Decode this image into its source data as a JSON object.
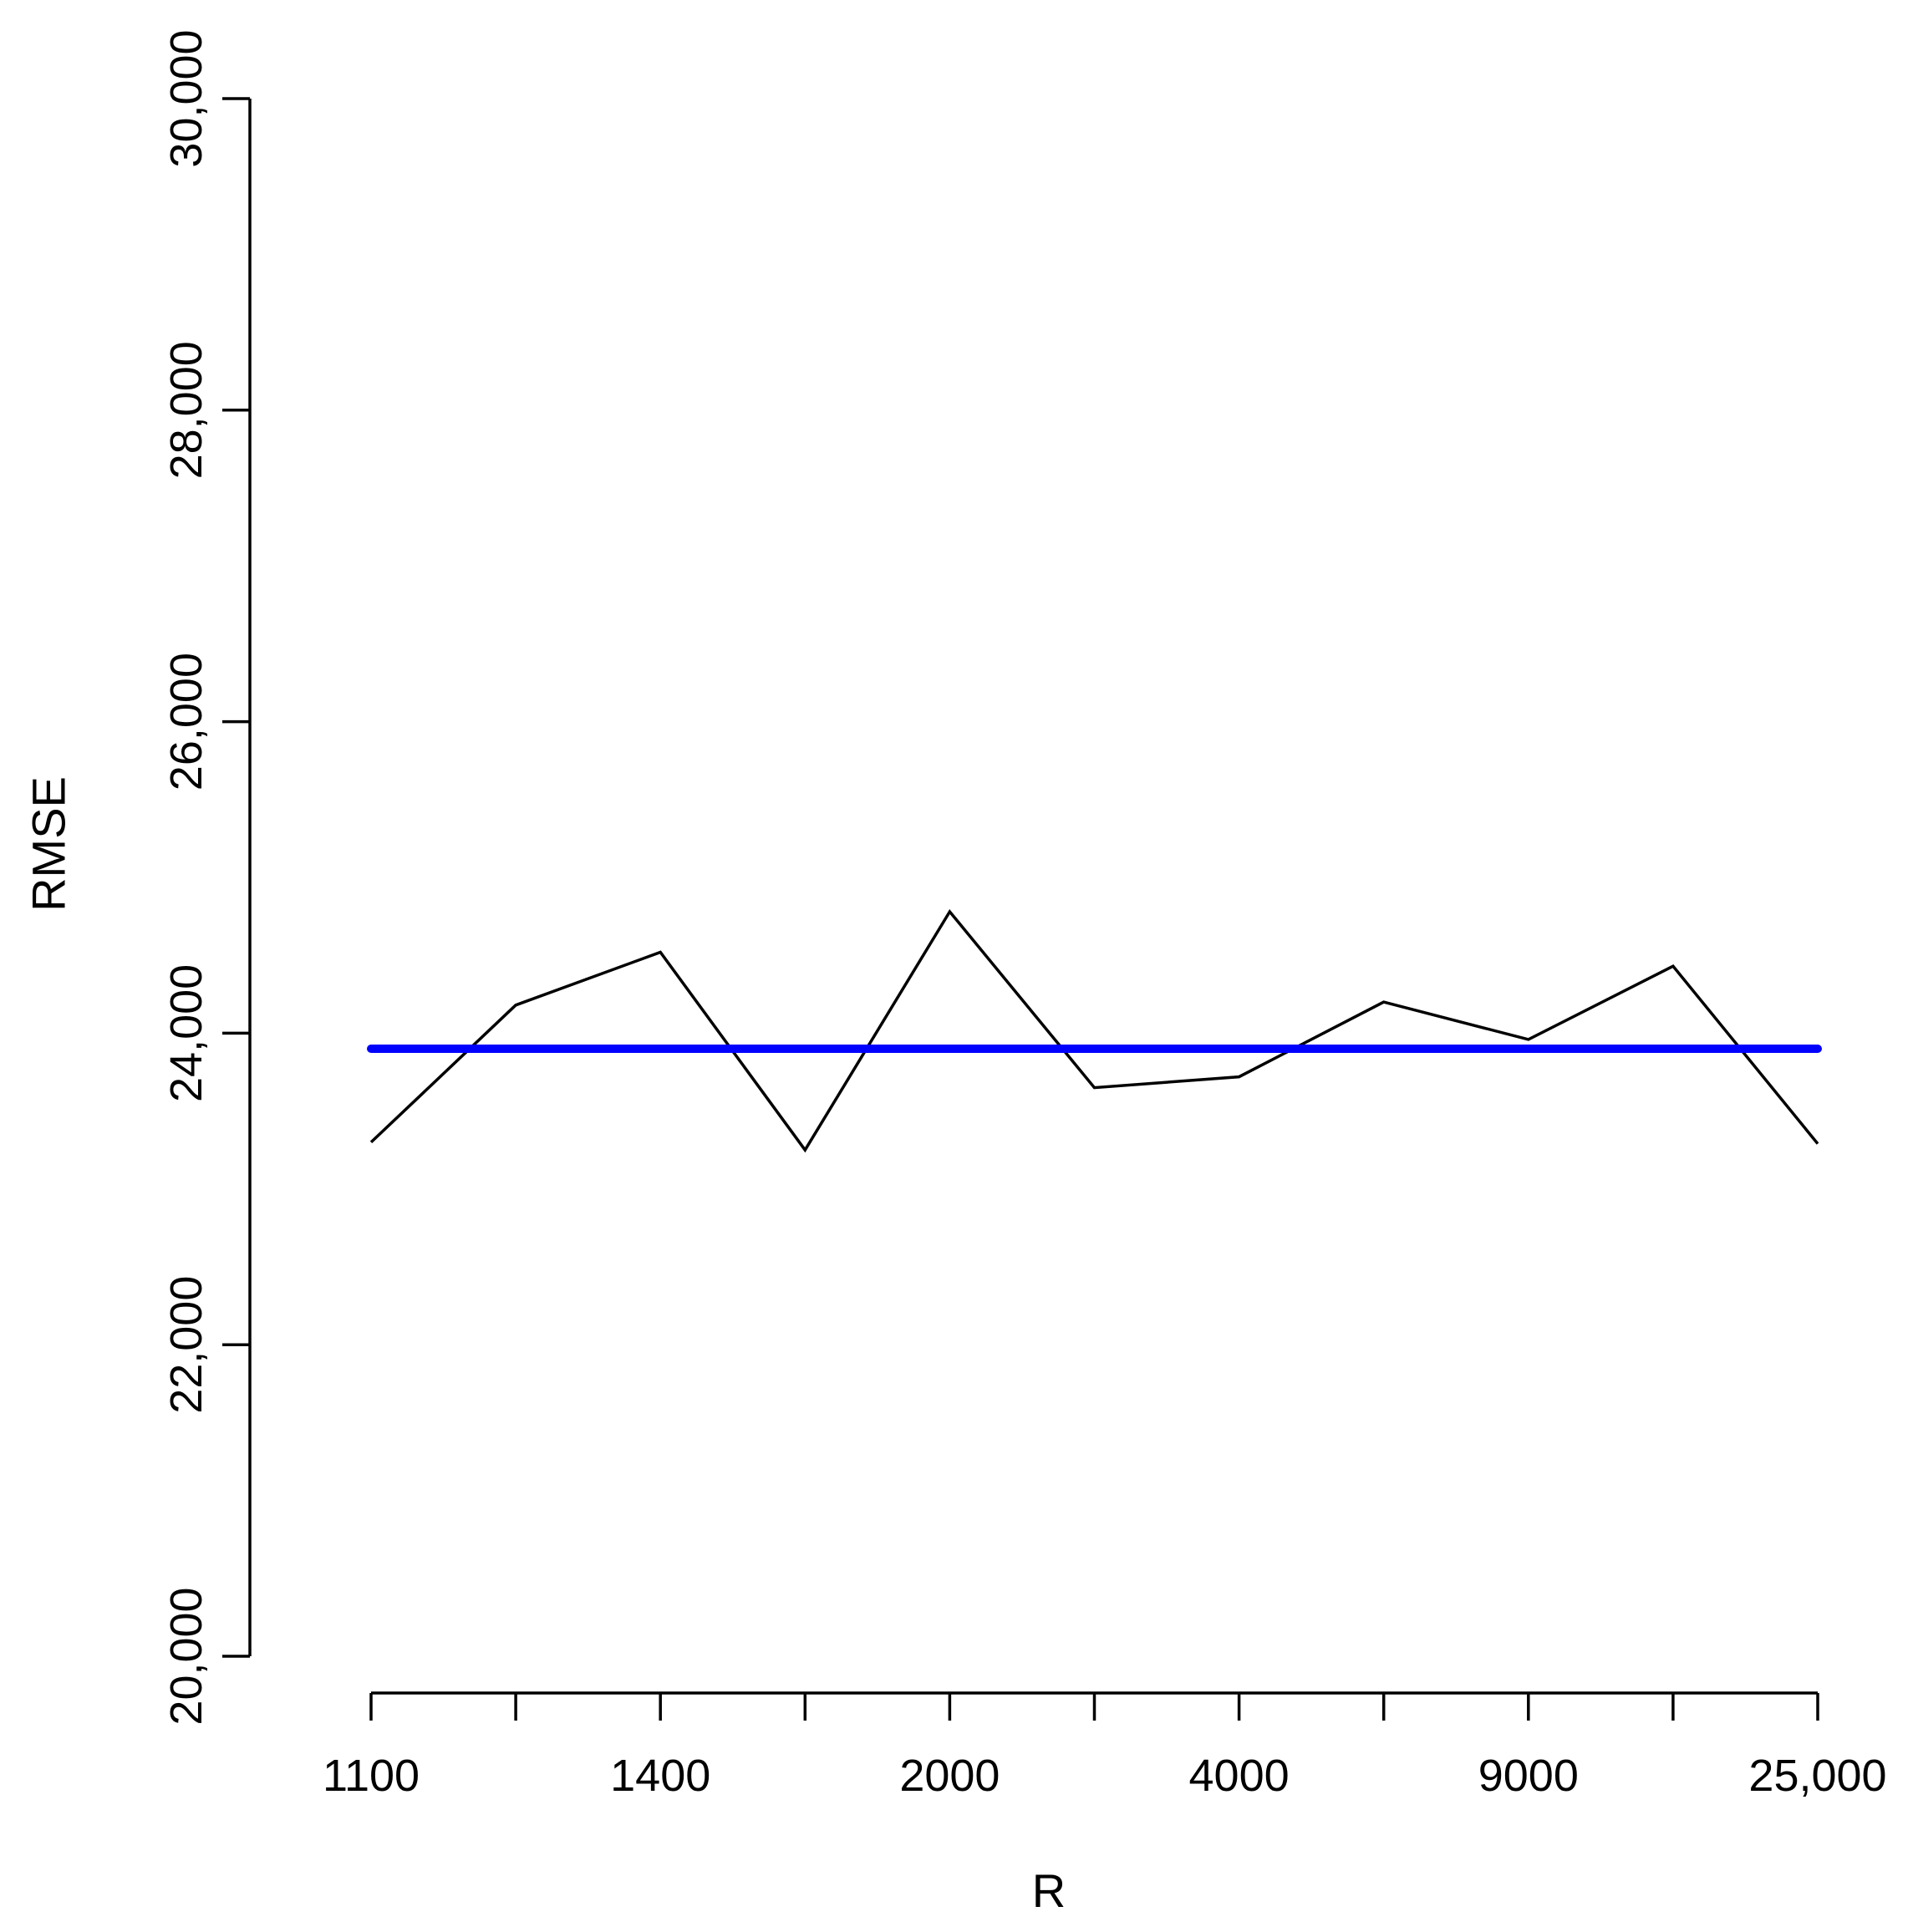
{
  "chart_data": {
    "type": "line",
    "title": "",
    "xlabel": "R",
    "ylabel": "RMSE",
    "ylim": [
      20000,
      30000
    ],
    "grid": false,
    "x_tick_positions": 11,
    "x_tick_labels": [
      "1100",
      "",
      "1400",
      "",
      "2000",
      "",
      "4000",
      "",
      "9000",
      "",
      "25,000"
    ],
    "y_ticks": [
      20000,
      22000,
      24000,
      26000,
      28000,
      30000
    ],
    "y_tick_labels": [
      "20,000",
      "22,000",
      "24,000",
      "26,000",
      "28,000",
      "30,000"
    ],
    "series": [
      {
        "color": "#000000",
        "values": [
          23300,
          24180,
          24520,
          23250,
          24780,
          23650,
          23720,
          24200,
          23960,
          24430,
          23290
        ]
      },
      {
        "color": "#0000ff",
        "values": [
          23900,
          23900,
          23900,
          23900,
          23900,
          23900,
          23900,
          23900,
          23900,
          23900,
          23900
        ]
      }
    ]
  }
}
